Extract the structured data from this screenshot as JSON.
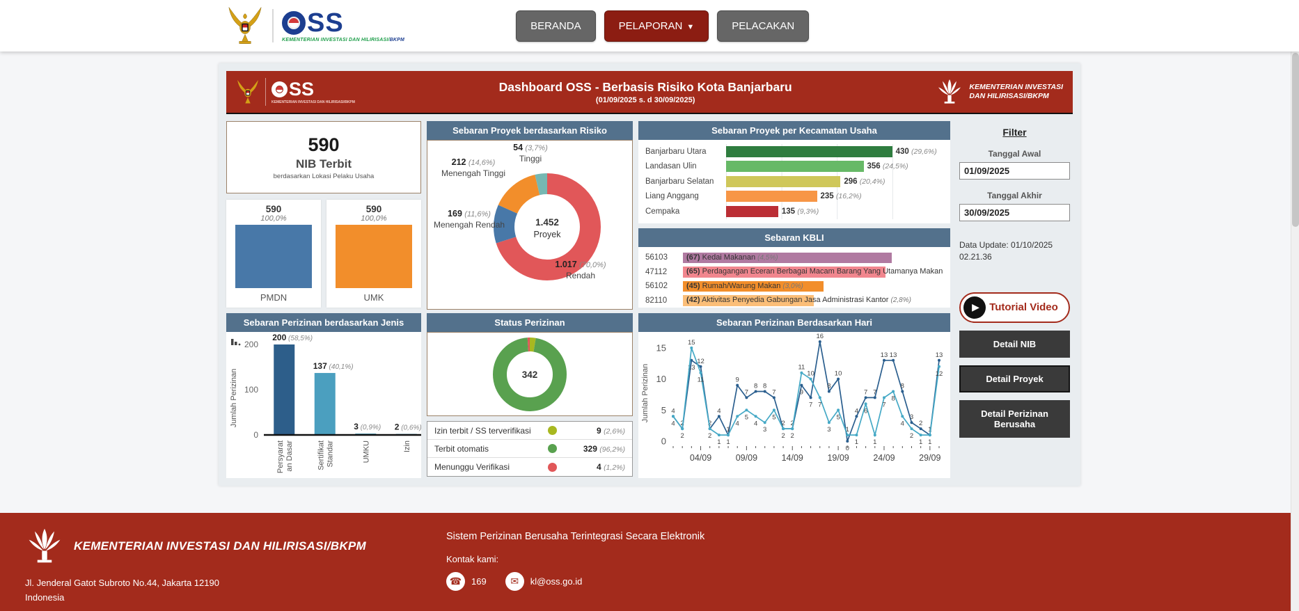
{
  "navbar": {
    "tagline_main": "KEMENTERIAN INVESTASI DAN HILIRISASI/",
    "tagline_accent": "BKPM",
    "oss_s1": "SS",
    "buttons": {
      "beranda": "BERANDA",
      "pelaporan": "PELAPORAN",
      "pelacakan": "PELACAKAN"
    }
  },
  "banner": {
    "title": "Dashboard OSS - Berbasis Risiko Kota Banjarbaru",
    "subtitle": "(01/09/2025 s. d 30/09/2025)",
    "oss_tag": "KEMENTERIAN INVESTASI DAN HILIRISASI/BKPM",
    "right_line1": "KEMENTERIAN INVESTASI",
    "right_line2": "DAN HILIRISASI/BKPM"
  },
  "nib_card": {
    "value": "590",
    "title": "NIB Terbit",
    "subtitle": "berdasarkan Lokasi Pelaku Usaha"
  },
  "filter": {
    "title": "Filter",
    "start_label": "Tanggal Awal",
    "start_value": "01/09/2025",
    "end_label": "Tanggal Akhir",
    "end_value": "30/09/2025",
    "data_update": "Data Update: 01/10/2025 02.21.36"
  },
  "actions": {
    "tutorial": "Tutorial Video",
    "detail_nib": "Detail NIB",
    "detail_proyek": "Detail Proyek",
    "detail_perizinan": "Detail Perizinan Berusaha"
  },
  "chart_data": [
    {
      "id": "pmdn_umk",
      "type": "bar",
      "categories": [
        "PMDN",
        "UMK"
      ],
      "values": [
        590,
        590
      ],
      "value_labels": [
        "590",
        "590"
      ],
      "pct_labels": [
        "100,0%",
        "100,0%"
      ],
      "colors": [
        "#4878a8",
        "#f28e2b"
      ]
    },
    {
      "id": "risiko",
      "type": "pie",
      "title": "Sebaran Proyek berdasarkan Risiko",
      "center_value": "1.452",
      "center_label": "Proyek",
      "segments": [
        {
          "label": "Rendah",
          "value": 1017,
          "value_label": "1.017",
          "pct": "70,0%",
          "color": "#e15759"
        },
        {
          "label": "Menengah Rendah",
          "value": 169,
          "value_label": "169",
          "pct": "11,6%",
          "color": "#4878a8"
        },
        {
          "label": "Menengah Tinggi",
          "value": 212,
          "value_label": "212",
          "pct": "14,6%",
          "color": "#f28e2b"
        },
        {
          "label": "Tinggi",
          "value": 54,
          "value_label": "54",
          "pct": "3,7%",
          "color": "#76b7b2"
        }
      ]
    },
    {
      "id": "kecamatan",
      "type": "bar",
      "orientation": "horizontal",
      "title": "Sebaran Proyek per Kecamatan Usaha",
      "categories": [
        "Banjarbaru Utara",
        "Landasan Ulin",
        "Banjarbaru Selatan",
        "Liang Anggang",
        "Cempaka"
      ],
      "values": [
        430,
        356,
        296,
        235,
        135
      ],
      "pcts": [
        "29,6%",
        "24,5%",
        "20,4%",
        "16,2%",
        "9,3%"
      ],
      "colors": [
        "#2f7d3f",
        "#67b967",
        "#cfc75a",
        "#f79646",
        "#bb2e35"
      ],
      "xmax": 430
    },
    {
      "id": "kbli",
      "type": "bar",
      "orientation": "horizontal",
      "title": "Sebaran  KBLI",
      "rows": [
        {
          "code": "56103",
          "value": 67,
          "label": "Kedai Makanan",
          "pct": "4,5%",
          "color": "#b07aa1"
        },
        {
          "code": "47112",
          "value": 65,
          "label": "Perdagangan Eceran Berbagai Macam Barang Yang Utamanya Makan",
          "pct": "",
          "color": "#f1868e"
        },
        {
          "code": "56102",
          "value": 45,
          "label": "Rumah/Warung Makan",
          "pct": "3,0%",
          "color": "#f28e2b"
        },
        {
          "code": "82110",
          "value": 42,
          "label": "Aktivitas Penyedia Gabungan Jasa Administrasi Kantor",
          "pct": "2,8%",
          "color": "#fbbe78"
        }
      ],
      "xmax": 67
    },
    {
      "id": "jenis",
      "type": "bar",
      "title": "Sebaran Perizinan berdasarkan Jenis",
      "ylabel": "Jumlah Perizinan",
      "yticks": [
        0,
        100,
        200
      ],
      "ylim": [
        0,
        200
      ],
      "categories": [
        "Persyaratan Dasar",
        "Sertifikat Standar",
        "UMKU",
        "Izin"
      ],
      "cat_lines": [
        [
          "Persyarat",
          "an Dasar"
        ],
        [
          "Sertifikat",
          "Standar"
        ],
        [
          "UMKU"
        ],
        [
          "Izin"
        ]
      ],
      "values": [
        200,
        137,
        3,
        2
      ],
      "pcts": [
        "58,5%",
        "40,1%",
        "0,9%",
        "0,6%"
      ],
      "colors": [
        "#2d5e8a",
        "#4b9fbf",
        "#4b9fbf",
        "#4b9fbf"
      ]
    },
    {
      "id": "status",
      "type": "pie",
      "title": "Status Perizinan",
      "center_value": "342",
      "segments": [
        {
          "label": "Izin terbit / SS terverifikasi",
          "value": 9,
          "value_label": "9",
          "pct": "2,6%",
          "color": "#a8b820"
        },
        {
          "label": "Terbit otomatis",
          "value": 329,
          "value_label": "329",
          "pct": "96,2%",
          "color": "#59a14f"
        },
        {
          "label": "Menunggu Verifikasi",
          "value": 4,
          "value_label": "4",
          "pct": "1,2%",
          "color": "#e15759"
        }
      ],
      "legend_position": "bottom"
    },
    {
      "id": "daily",
      "type": "line",
      "title": "Sebaran Perizinan Berdasarkan Hari",
      "ylabel": "Jumlah Perizinan",
      "yticks": [
        0,
        5,
        10,
        15
      ],
      "ylim": [
        0,
        16
      ],
      "num_days": 30,
      "xtick_days": [
        4,
        9,
        14,
        19,
        24,
        29
      ],
      "xtick_labels": [
        "04/09",
        "09/09",
        "14/09",
        "19/09",
        "24/09",
        "29/09"
      ],
      "series": [
        {
          "name": "dark_blue",
          "color": "#2a5e8e",
          "values": [
            4,
            2,
            13,
            12,
            2,
            4,
            1,
            9,
            7,
            8,
            8,
            7,
            2,
            2,
            9,
            7,
            16,
            8,
            10,
            0,
            4,
            7,
            7,
            13,
            13,
            8,
            3,
            2,
            1,
            13
          ]
        },
        {
          "name": "light_blue",
          "color": "#45a9c6",
          "values": [
            4,
            2,
            15,
            11,
            2,
            1,
            1,
            4,
            5,
            4,
            3,
            5,
            2,
            2,
            11,
            10,
            7,
            3,
            5,
            1,
            1,
            6,
            1,
            7,
            8,
            4,
            2,
            1,
            1,
            12
          ]
        }
      ]
    }
  ],
  "footer": {
    "ministry": "KEMENTERIAN INVESTASI DAN HILIRISASI/BKPM",
    "address1": "Jl. Jenderal Gatot Subroto No.44, Jakarta 12190",
    "address2": "Indonesia",
    "system": "Sistem Perizinan Berusaha Terintegrasi Secara Elektronik",
    "contact_label": "Kontak kami:",
    "phone": "169",
    "email": "kl@oss.go.id"
  }
}
